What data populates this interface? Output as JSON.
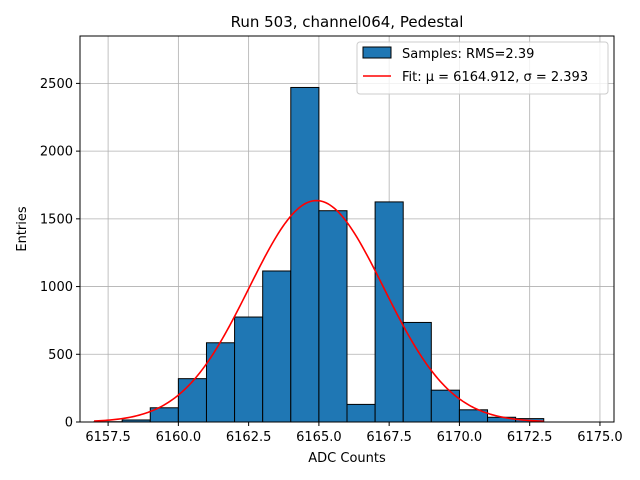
{
  "chart_data": {
    "type": "bar",
    "title": "Run 503, channel064, Pedestal",
    "xlabel": "ADC Counts",
    "ylabel": "Entries",
    "xlim": [
      6156.5,
      6175.5
    ],
    "ylim": [
      0,
      2850
    ],
    "grid": true,
    "legend_position": "top-right",
    "xticks": [
      6157.5,
      6160.0,
      6162.5,
      6165.0,
      6167.5,
      6170.0,
      6172.5,
      6175.0
    ],
    "xtick_labels": [
      "6157.5",
      "6160.0",
      "6162.5",
      "6165.0",
      "6167.5",
      "6170.0",
      "6172.5",
      "6175.0"
    ],
    "yticks": [
      0,
      500,
      1000,
      1500,
      2000,
      2500
    ],
    "ytick_labels": [
      "0",
      "500",
      "1000",
      "1500",
      "2000",
      "2500"
    ],
    "histogram": {
      "name": "Samples: RMS=2.39",
      "color": "#1f77b4",
      "bin_edges": [
        6157,
        6158,
        6159,
        6160,
        6161,
        6162,
        6163,
        6164,
        6165,
        6166,
        6167,
        6168,
        6169,
        6170,
        6171,
        6172,
        6173
      ],
      "counts": [
        2,
        15,
        105,
        320,
        585,
        775,
        1115,
        2470,
        1560,
        130,
        1625,
        735,
        235,
        90,
        35,
        25
      ]
    },
    "fit": {
      "name": "Fit: μ = 6164.912, σ = 2.393",
      "color": "#ff0000",
      "mu": 6164.912,
      "sigma": 2.393,
      "peak": 1635,
      "x_range": [
        6157,
        6173
      ]
    }
  }
}
